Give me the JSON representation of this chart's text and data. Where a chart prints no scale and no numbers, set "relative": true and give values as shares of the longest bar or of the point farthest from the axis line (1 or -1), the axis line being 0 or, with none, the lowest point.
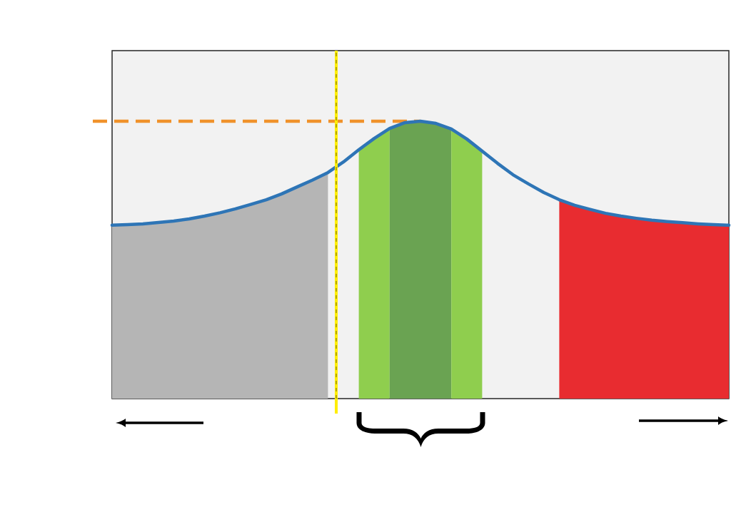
{
  "chart_data": {
    "type": "line",
    "relative": true,
    "tick_labels": false,
    "categories": [
      null,
      null,
      null,
      null,
      null,
      null,
      null,
      null,
      null,
      null,
      null,
      null,
      null,
      null,
      null,
      null,
      null,
      null,
      null,
      null,
      null,
      null,
      null,
      null,
      null,
      null,
      null,
      null,
      null,
      null,
      null,
      null,
      null,
      null,
      null,
      null,
      null,
      null,
      null,
      null,
      null
    ],
    "series": [
      {
        "type": "area",
        "color": "#b5b5b5",
        "values": [
          0.625,
          0.627,
          0.63,
          0.635,
          0.64,
          0.648,
          0.658,
          0.67,
          0.684,
          0.7,
          0.717,
          0.738,
          0.763,
          0.788,
          0.815,
          null,
          null,
          null,
          null,
          null,
          null,
          null,
          null,
          null,
          null,
          null,
          null,
          null,
          null,
          null,
          null,
          null,
          null,
          null,
          null,
          null,
          null,
          null,
          null,
          null,
          null
        ]
      },
      {
        "type": "area",
        "color": "#8fce4e",
        "values": [
          null,
          null,
          null,
          null,
          null,
          null,
          null,
          null,
          null,
          null,
          null,
          null,
          null,
          null,
          null,
          null,
          0.897,
          0.938,
          0.974,
          null,
          null,
          null,
          null,
          null,
          null,
          null,
          null,
          null,
          null,
          null,
          null,
          null,
          null,
          null,
          null,
          null,
          null,
          null,
          null,
          null,
          null
        ]
      },
      {
        "type": "area",
        "color": "#6aa352",
        "values": [
          null,
          null,
          null,
          null,
          null,
          null,
          null,
          null,
          null,
          null,
          null,
          null,
          null,
          null,
          null,
          null,
          null,
          null,
          0.974,
          0.995,
          1,
          0.992,
          0.972,
          null,
          null,
          null,
          null,
          null,
          null,
          null,
          null,
          null,
          null,
          null,
          null,
          null,
          null,
          null,
          null,
          null,
          null
        ]
      },
      {
        "type": "area",
        "color": "#8fce4e",
        "values": [
          null,
          null,
          null,
          null,
          null,
          null,
          null,
          null,
          null,
          null,
          null,
          null,
          null,
          null,
          null,
          null,
          null,
          null,
          null,
          null,
          null,
          null,
          0.972,
          0.936,
          0.892,
          null,
          null,
          null,
          null,
          null,
          null,
          null,
          null,
          null,
          null,
          null,
          null,
          null,
          null,
          null,
          null
        ]
      },
      {
        "type": "area",
        "color": "#e82c30",
        "values": [
          null,
          null,
          null,
          null,
          null,
          null,
          null,
          null,
          null,
          null,
          null,
          null,
          null,
          null,
          null,
          null,
          null,
          null,
          null,
          null,
          null,
          null,
          null,
          null,
          null,
          null,
          null,
          null,
          null,
          0.717,
          0.697,
          0.682,
          0.668,
          0.658,
          0.65,
          0.643,
          0.638,
          0.634,
          0.63,
          0.627,
          0.625
        ]
      },
      {
        "type": "line",
        "color": "#2e75b6",
        "values": [
          0.625,
          0.627,
          0.63,
          0.635,
          0.64,
          0.648,
          0.658,
          0.67,
          0.684,
          0.7,
          0.717,
          0.738,
          0.763,
          0.788,
          0.815,
          0.853,
          0.897,
          0.938,
          0.974,
          0.995,
          1,
          0.992,
          0.972,
          0.936,
          0.892,
          0.848,
          0.807,
          0.774,
          0.743,
          0.717,
          0.697,
          0.682,
          0.668,
          0.658,
          0.65,
          0.643,
          0.638,
          0.634,
          0.63,
          0.627,
          0.625
        ]
      }
    ],
    "ref_lines": [
      {
        "axis": "y",
        "value": 1,
        "color": "#f0922b",
        "line_style": "dashed"
      }
    ]
  }
}
